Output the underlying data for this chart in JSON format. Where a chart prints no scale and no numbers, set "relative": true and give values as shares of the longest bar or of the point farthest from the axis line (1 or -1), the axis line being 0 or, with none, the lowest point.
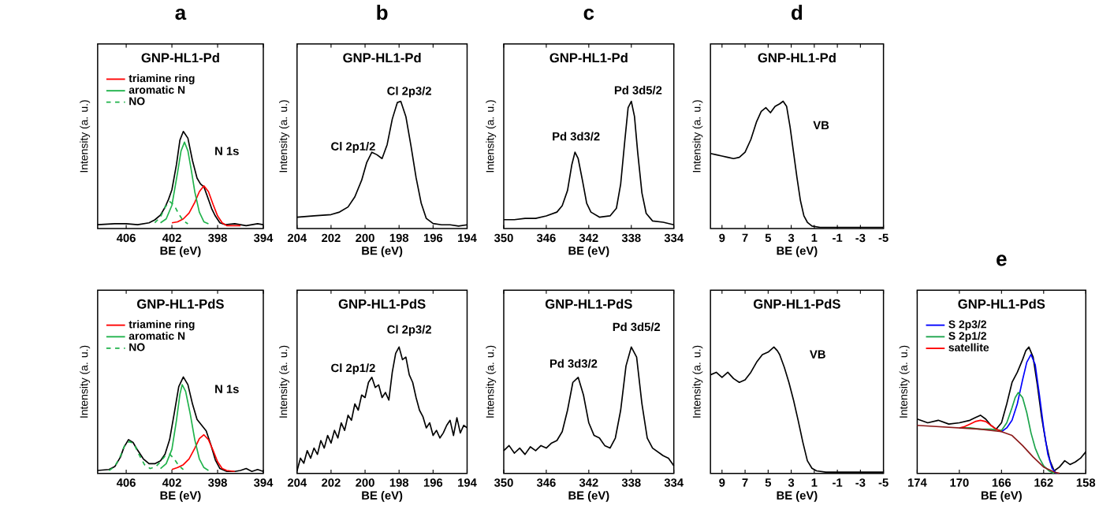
{
  "chart_data": [
    {
      "type": "line",
      "title": "a",
      "subtitle": "GNP-HL1-Pd",
      "xlabel": "BE (eV)",
      "ylabel": "Intensity (a. u.)",
      "relative": true,
      "xlim": [
        408.5,
        394
      ],
      "xticks": [
        406,
        402,
        398,
        394
      ],
      "legend": "top left",
      "annotations": [
        "N 1s"
      ],
      "series": [
        {
          "color": "#000000",
          "x": [
            408.5,
            407,
            406,
            405,
            404,
            403.5,
            403,
            402.6,
            402.3,
            402,
            401.6,
            401.3,
            401,
            400.6,
            400.2,
            399.8,
            399.5,
            399.2,
            398.8,
            398.5,
            398.2,
            397.8,
            397.3,
            396.5,
            395.5,
            394.5,
            394
          ],
          "values": [
            0.04,
            0.05,
            0.05,
            0.04,
            0.06,
            0.09,
            0.14,
            0.22,
            0.3,
            0.4,
            0.66,
            0.91,
            1.0,
            0.93,
            0.7,
            0.52,
            0.46,
            0.43,
            0.3,
            0.2,
            0.13,
            0.06,
            0.04,
            0.05,
            0.03,
            0.05,
            0.04
          ]
        },
        {
          "name": "triamine ring",
          "color": "#ff0000",
          "x": [
            402,
            401.5,
            401,
            400.5,
            400,
            399.6,
            399.2,
            398.8,
            398.4,
            398,
            397.6,
            397.2,
            396.5,
            396
          ],
          "values": [
            0.06,
            0.07,
            0.1,
            0.16,
            0.27,
            0.38,
            0.44,
            0.38,
            0.25,
            0.13,
            0.06,
            0.03,
            0.03,
            0.03
          ]
        },
        {
          "name": "aromatic N",
          "color": "#1fb24a",
          "x": [
            403,
            402.5,
            402,
            401.5,
            401.2,
            400.9,
            400.6,
            400.3,
            400,
            399.6,
            399.2,
            398.8
          ],
          "values": [
            0.06,
            0.1,
            0.24,
            0.58,
            0.8,
            0.89,
            0.8,
            0.6,
            0.38,
            0.17,
            0.07,
            0.05
          ]
        },
        {
          "name": "NO",
          "color": "#1fb24a",
          "line_style": "dashed",
          "x": [
            403.5,
            403,
            402.6,
            402.2,
            401.8,
            401.4,
            401,
            400.6
          ],
          "values": [
            0.06,
            0.12,
            0.22,
            0.28,
            0.24,
            0.15,
            0.08,
            0.05
          ]
        }
      ]
    },
    {
      "type": "line",
      "title": "b",
      "subtitle": "GNP-HL1-Pd",
      "xlabel": "BE (eV)",
      "ylabel": "Intensity (a. u.)",
      "relative": true,
      "xlim": [
        204,
        194
      ],
      "xticks": [
        204,
        202,
        200,
        198,
        196,
        194
      ],
      "annotations": [
        "Cl 2p1/2",
        "Cl 2p3/2"
      ],
      "series": [
        {
          "color": "#000000",
          "x": [
            204,
            203,
            202,
            201.5,
            201,
            200.6,
            200.2,
            199.9,
            199.6,
            199.3,
            199,
            198.7,
            198.4,
            198.1,
            197.9,
            197.6,
            197.3,
            197,
            196.7,
            196.4,
            196,
            195.5,
            195,
            194.5,
            194
          ],
          "values": [
            0.09,
            0.1,
            0.11,
            0.13,
            0.17,
            0.25,
            0.38,
            0.52,
            0.6,
            0.58,
            0.55,
            0.66,
            0.86,
            0.99,
            1.0,
            0.88,
            0.65,
            0.4,
            0.2,
            0.08,
            0.04,
            0.03,
            0.03,
            0.02,
            0.03
          ]
        }
      ]
    },
    {
      "type": "line",
      "title": "c",
      "subtitle": "GNP-HL1-Pd",
      "xlabel": "BE (eV)",
      "ylabel": "Intensity (a. u.)",
      "relative": true,
      "xlim": [
        350,
        334
      ],
      "xticks": [
        350,
        346,
        342,
        338,
        334
      ],
      "annotations": [
        "Pd 3d3/2",
        "Pd 3d5/2"
      ],
      "series": [
        {
          "color": "#000000",
          "x": [
            350,
            349,
            348,
            347,
            346,
            345,
            344.5,
            344,
            343.6,
            343.3,
            343,
            342.6,
            342.2,
            341.8,
            341,
            340,
            339.4,
            339,
            338.6,
            338.3,
            338,
            337.7,
            337.4,
            337,
            336.6,
            336,
            335,
            334
          ],
          "values": [
            0.07,
            0.07,
            0.08,
            0.08,
            0.1,
            0.13,
            0.18,
            0.3,
            0.5,
            0.6,
            0.55,
            0.38,
            0.2,
            0.13,
            0.09,
            0.1,
            0.16,
            0.35,
            0.7,
            0.95,
            1.0,
            0.88,
            0.6,
            0.28,
            0.12,
            0.06,
            0.05,
            0.03
          ]
        }
      ]
    },
    {
      "type": "line",
      "title": "d",
      "subtitle": "GNP-HL1-Pd",
      "xlabel": "BE (eV)",
      "ylabel": "Intensity (a. u.)",
      "relative": true,
      "xlim": [
        10,
        -5
      ],
      "xticks": [
        9,
        7,
        5,
        3,
        1,
        -1,
        -3,
        -5
      ],
      "annotations": [
        "VB"
      ],
      "series": [
        {
          "color": "#000000",
          "x": [
            10,
            9.5,
            9,
            8.5,
            8,
            7.5,
            7,
            6.5,
            6,
            5.6,
            5.2,
            4.8,
            4.4,
            4,
            3.7,
            3.4,
            3.1,
            2.8,
            2.5,
            2.2,
            1.9,
            1.6,
            1.2,
            0.5,
            -1,
            -3,
            -5
          ],
          "values": [
            0.59,
            0.58,
            0.57,
            0.56,
            0.55,
            0.56,
            0.6,
            0.7,
            0.84,
            0.92,
            0.95,
            0.91,
            0.96,
            0.98,
            1.0,
            0.96,
            0.8,
            0.6,
            0.4,
            0.22,
            0.1,
            0.05,
            0.02,
            0.01,
            0.01,
            0.01,
            0.01
          ]
        }
      ]
    },
    {
      "type": "line",
      "subtitle": "GNP-HL1-PdS",
      "xlabel": "BE (eV)",
      "ylabel": "Intensity (a. u.)",
      "relative": true,
      "xlim": [
        408.5,
        394
      ],
      "xticks": [
        406,
        402,
        398,
        394
      ],
      "legend": "top left",
      "annotations": [
        "N 1s"
      ],
      "series": [
        {
          "color": "#000000",
          "x": [
            408.5,
            407.5,
            407,
            406.5,
            406.2,
            405.8,
            405.4,
            405,
            404.5,
            404,
            403.5,
            403,
            402.6,
            402.2,
            401.8,
            401.4,
            401,
            400.6,
            400.2,
            399.8,
            399.4,
            399,
            398.6,
            398.2,
            397.8,
            397.2,
            396.5,
            396,
            395.5,
            395,
            394.5,
            394
          ],
          "values": [
            0.03,
            0.04,
            0.07,
            0.17,
            0.27,
            0.35,
            0.32,
            0.24,
            0.15,
            0.1,
            0.1,
            0.13,
            0.2,
            0.35,
            0.62,
            0.9,
            1.0,
            0.92,
            0.72,
            0.56,
            0.5,
            0.44,
            0.3,
            0.14,
            0.05,
            0.02,
            0.02,
            0.03,
            0.05,
            0.02,
            0.04,
            0.02
          ]
        },
        {
          "name": "triamine ring",
          "color": "#ff0000",
          "x": [
            402,
            401.5,
            401,
            400.5,
            400,
            399.6,
            399.2,
            398.8,
            398.4,
            398,
            397.6,
            397.2,
            396.5
          ],
          "values": [
            0.04,
            0.06,
            0.09,
            0.15,
            0.26,
            0.36,
            0.4,
            0.35,
            0.24,
            0.12,
            0.05,
            0.03,
            0.02
          ]
        },
        {
          "name": "aromatic N",
          "color": "#1fb24a",
          "x": [
            403,
            402.5,
            402,
            401.6,
            401.3,
            401.1,
            400.8,
            400.4,
            400,
            399.6,
            399.2,
            398.8
          ],
          "values": [
            0.05,
            0.1,
            0.25,
            0.55,
            0.82,
            0.92,
            0.85,
            0.62,
            0.35,
            0.15,
            0.06,
            0.03
          ]
        },
        {
          "name": "NO",
          "color": "#1fb24a",
          "line_style": "dashed",
          "x": [
            407.5,
            407,
            406.5,
            406.1,
            405.7,
            405.3,
            404.9,
            404.4,
            403.9,
            403.4,
            403,
            402.6,
            402.2,
            401.8,
            401.4,
            401
          ],
          "values": [
            0.03,
            0.07,
            0.18,
            0.3,
            0.33,
            0.3,
            0.2,
            0.09,
            0.05,
            0.07,
            0.12,
            0.18,
            0.2,
            0.15,
            0.08,
            0.04
          ]
        }
      ]
    },
    {
      "type": "line",
      "subtitle": "GNP-HL1-PdS",
      "xlabel": "BE (eV)",
      "ylabel": "Intensity (a. u.)",
      "relative": true,
      "xlim": [
        204,
        194
      ],
      "xticks": [
        204,
        202,
        200,
        198,
        196,
        194
      ],
      "annotations": [
        "Cl 2p1/2",
        "Cl 2p3/2"
      ],
      "series": [
        {
          "color": "#000000",
          "x": [
            204,
            203.8,
            203.6,
            203.4,
            203.2,
            203,
            202.8,
            202.6,
            202.4,
            202.2,
            202,
            201.8,
            201.6,
            201.4,
            201.2,
            201,
            200.8,
            200.6,
            200.4,
            200.2,
            200,
            199.8,
            199.6,
            199.4,
            199.2,
            199,
            198.8,
            198.6,
            198.4,
            198.2,
            198,
            197.8,
            197.6,
            197.4,
            197.2,
            197,
            196.8,
            196.6,
            196.4,
            196.2,
            196,
            195.8,
            195.6,
            195.4,
            195.2,
            195,
            194.8,
            194.6,
            194.4,
            194.2,
            194
          ],
          "values": [
            0.02,
            0.12,
            0.08,
            0.18,
            0.12,
            0.2,
            0.15,
            0.26,
            0.2,
            0.3,
            0.24,
            0.34,
            0.28,
            0.4,
            0.34,
            0.46,
            0.42,
            0.55,
            0.5,
            0.62,
            0.6,
            0.72,
            0.76,
            0.68,
            0.7,
            0.6,
            0.64,
            0.58,
            0.8,
            0.95,
            1.0,
            0.9,
            0.92,
            0.78,
            0.72,
            0.6,
            0.5,
            0.45,
            0.36,
            0.4,
            0.3,
            0.34,
            0.28,
            0.32,
            0.38,
            0.42,
            0.3,
            0.44,
            0.32,
            0.38,
            0.36
          ]
        }
      ]
    },
    {
      "type": "line",
      "subtitle": "GNP-HL1-PdS",
      "xlabel": "BE (eV)",
      "ylabel": "Intensity (a. u.)",
      "relative": true,
      "xlim": [
        350,
        334
      ],
      "xticks": [
        350,
        346,
        342,
        338,
        334
      ],
      "annotations": [
        "Pd 3d3/2",
        "Pd 3d5/2"
      ],
      "series": [
        {
          "color": "#000000",
          "x": [
            350,
            349.5,
            349,
            348.5,
            348,
            347.5,
            347,
            346.5,
            346,
            345.5,
            345,
            344.5,
            344,
            343.5,
            343,
            342.5,
            342,
            341.5,
            341,
            340.5,
            340,
            339.5,
            339,
            338.5,
            338,
            337.5,
            337,
            336.5,
            336,
            335.5,
            335,
            334.5,
            334
          ],
          "values": [
            0.18,
            0.22,
            0.16,
            0.2,
            0.15,
            0.21,
            0.18,
            0.22,
            0.2,
            0.24,
            0.26,
            0.33,
            0.5,
            0.72,
            0.76,
            0.62,
            0.4,
            0.3,
            0.28,
            0.22,
            0.2,
            0.28,
            0.5,
            0.85,
            1.0,
            0.92,
            0.55,
            0.28,
            0.2,
            0.17,
            0.14,
            0.12,
            0.06
          ]
        }
      ]
    },
    {
      "type": "line",
      "subtitle": "GNP-HL1-PdS",
      "xlabel": "BE (eV)",
      "ylabel": "Intensity (a. u.)",
      "relative": true,
      "xlim": [
        10,
        -5
      ],
      "xticks": [
        9,
        7,
        5,
        3,
        1,
        -1,
        -3,
        -5
      ],
      "annotations": [
        "VB"
      ],
      "series": [
        {
          "color": "#000000",
          "x": [
            10,
            9.5,
            9,
            8.5,
            8,
            7.5,
            7,
            6.5,
            6,
            5.5,
            5,
            4.5,
            4.2,
            4,
            3.6,
            3.2,
            2.8,
            2.4,
            2,
            1.6,
            1.2,
            0.8,
            0,
            -2,
            -5
          ],
          "values": [
            0.78,
            0.8,
            0.76,
            0.8,
            0.75,
            0.72,
            0.74,
            0.8,
            0.88,
            0.94,
            0.96,
            1.0,
            0.97,
            0.94,
            0.84,
            0.72,
            0.58,
            0.42,
            0.25,
            0.1,
            0.04,
            0.02,
            0.01,
            0.01,
            0.01
          ]
        }
      ]
    },
    {
      "type": "line",
      "title": "e",
      "subtitle": "GNP-HL1-PdS",
      "xlabel": "BE (eV)",
      "ylabel": "Intensity (a. u.)",
      "relative": true,
      "xlim": [
        174,
        158
      ],
      "xticks": [
        174,
        170,
        166,
        162,
        158
      ],
      "legend": "top left",
      "series": [
        {
          "color": "#000000",
          "x": [
            174,
            173,
            172,
            171,
            170,
            169,
            168.5,
            168,
            167.5,
            167,
            166.5,
            166,
            165.5,
            165,
            164.5,
            164,
            163.7,
            163.4,
            163,
            162.6,
            162.2,
            161.8,
            161.4,
            161,
            160.5,
            160,
            159.5,
            159,
            158.5,
            158
          ],
          "values": [
            0.43,
            0.4,
            0.42,
            0.39,
            0.4,
            0.42,
            0.44,
            0.46,
            0.43,
            0.38,
            0.35,
            0.4,
            0.55,
            0.72,
            0.8,
            0.9,
            0.97,
            1.0,
            0.92,
            0.7,
            0.45,
            0.25,
            0.1,
            0.02,
            0.05,
            0.1,
            0.07,
            0.09,
            0.12,
            0.17
          ]
        },
        {
          "name": "S 2p3/2",
          "color": "#0000ff",
          "x": [
            166,
            165.5,
            165,
            164.5,
            164,
            163.6,
            163.2,
            162.8,
            162.4,
            162,
            161.6,
            161.2,
            160.8
          ],
          "values": [
            0.33,
            0.36,
            0.42,
            0.55,
            0.74,
            0.88,
            0.94,
            0.86,
            0.62,
            0.36,
            0.15,
            0.04,
            0.0
          ]
        },
        {
          "name": "S 2p1/2",
          "color": "#1aa34a",
          "x": [
            170,
            169,
            168,
            167,
            166,
            165.5,
            165,
            164.7,
            164.4,
            164,
            163.6,
            163.2,
            162.8,
            162.4,
            162,
            161.5,
            161
          ],
          "values": [
            0.36,
            0.36,
            0.35,
            0.35,
            0.34,
            0.4,
            0.52,
            0.6,
            0.64,
            0.6,
            0.48,
            0.32,
            0.2,
            0.12,
            0.06,
            0.02,
            0.0
          ]
        },
        {
          "name": "satellite",
          "color": "#ff0000",
          "x": [
            170,
            169.5,
            169,
            168.5,
            168,
            167.5,
            167,
            166.5,
            166
          ],
          "values": [
            0.36,
            0.37,
            0.39,
            0.41,
            0.42,
            0.41,
            0.38,
            0.35,
            0.33
          ]
        },
        {
          "color": "#8b1a1a",
          "x": [
            174,
            172,
            170,
            168,
            166,
            165,
            164,
            163,
            162,
            161,
            160.5
          ],
          "values": [
            0.38,
            0.37,
            0.36,
            0.35,
            0.33,
            0.3,
            0.22,
            0.13,
            0.05,
            0.01,
            0.0
          ]
        }
      ]
    }
  ]
}
